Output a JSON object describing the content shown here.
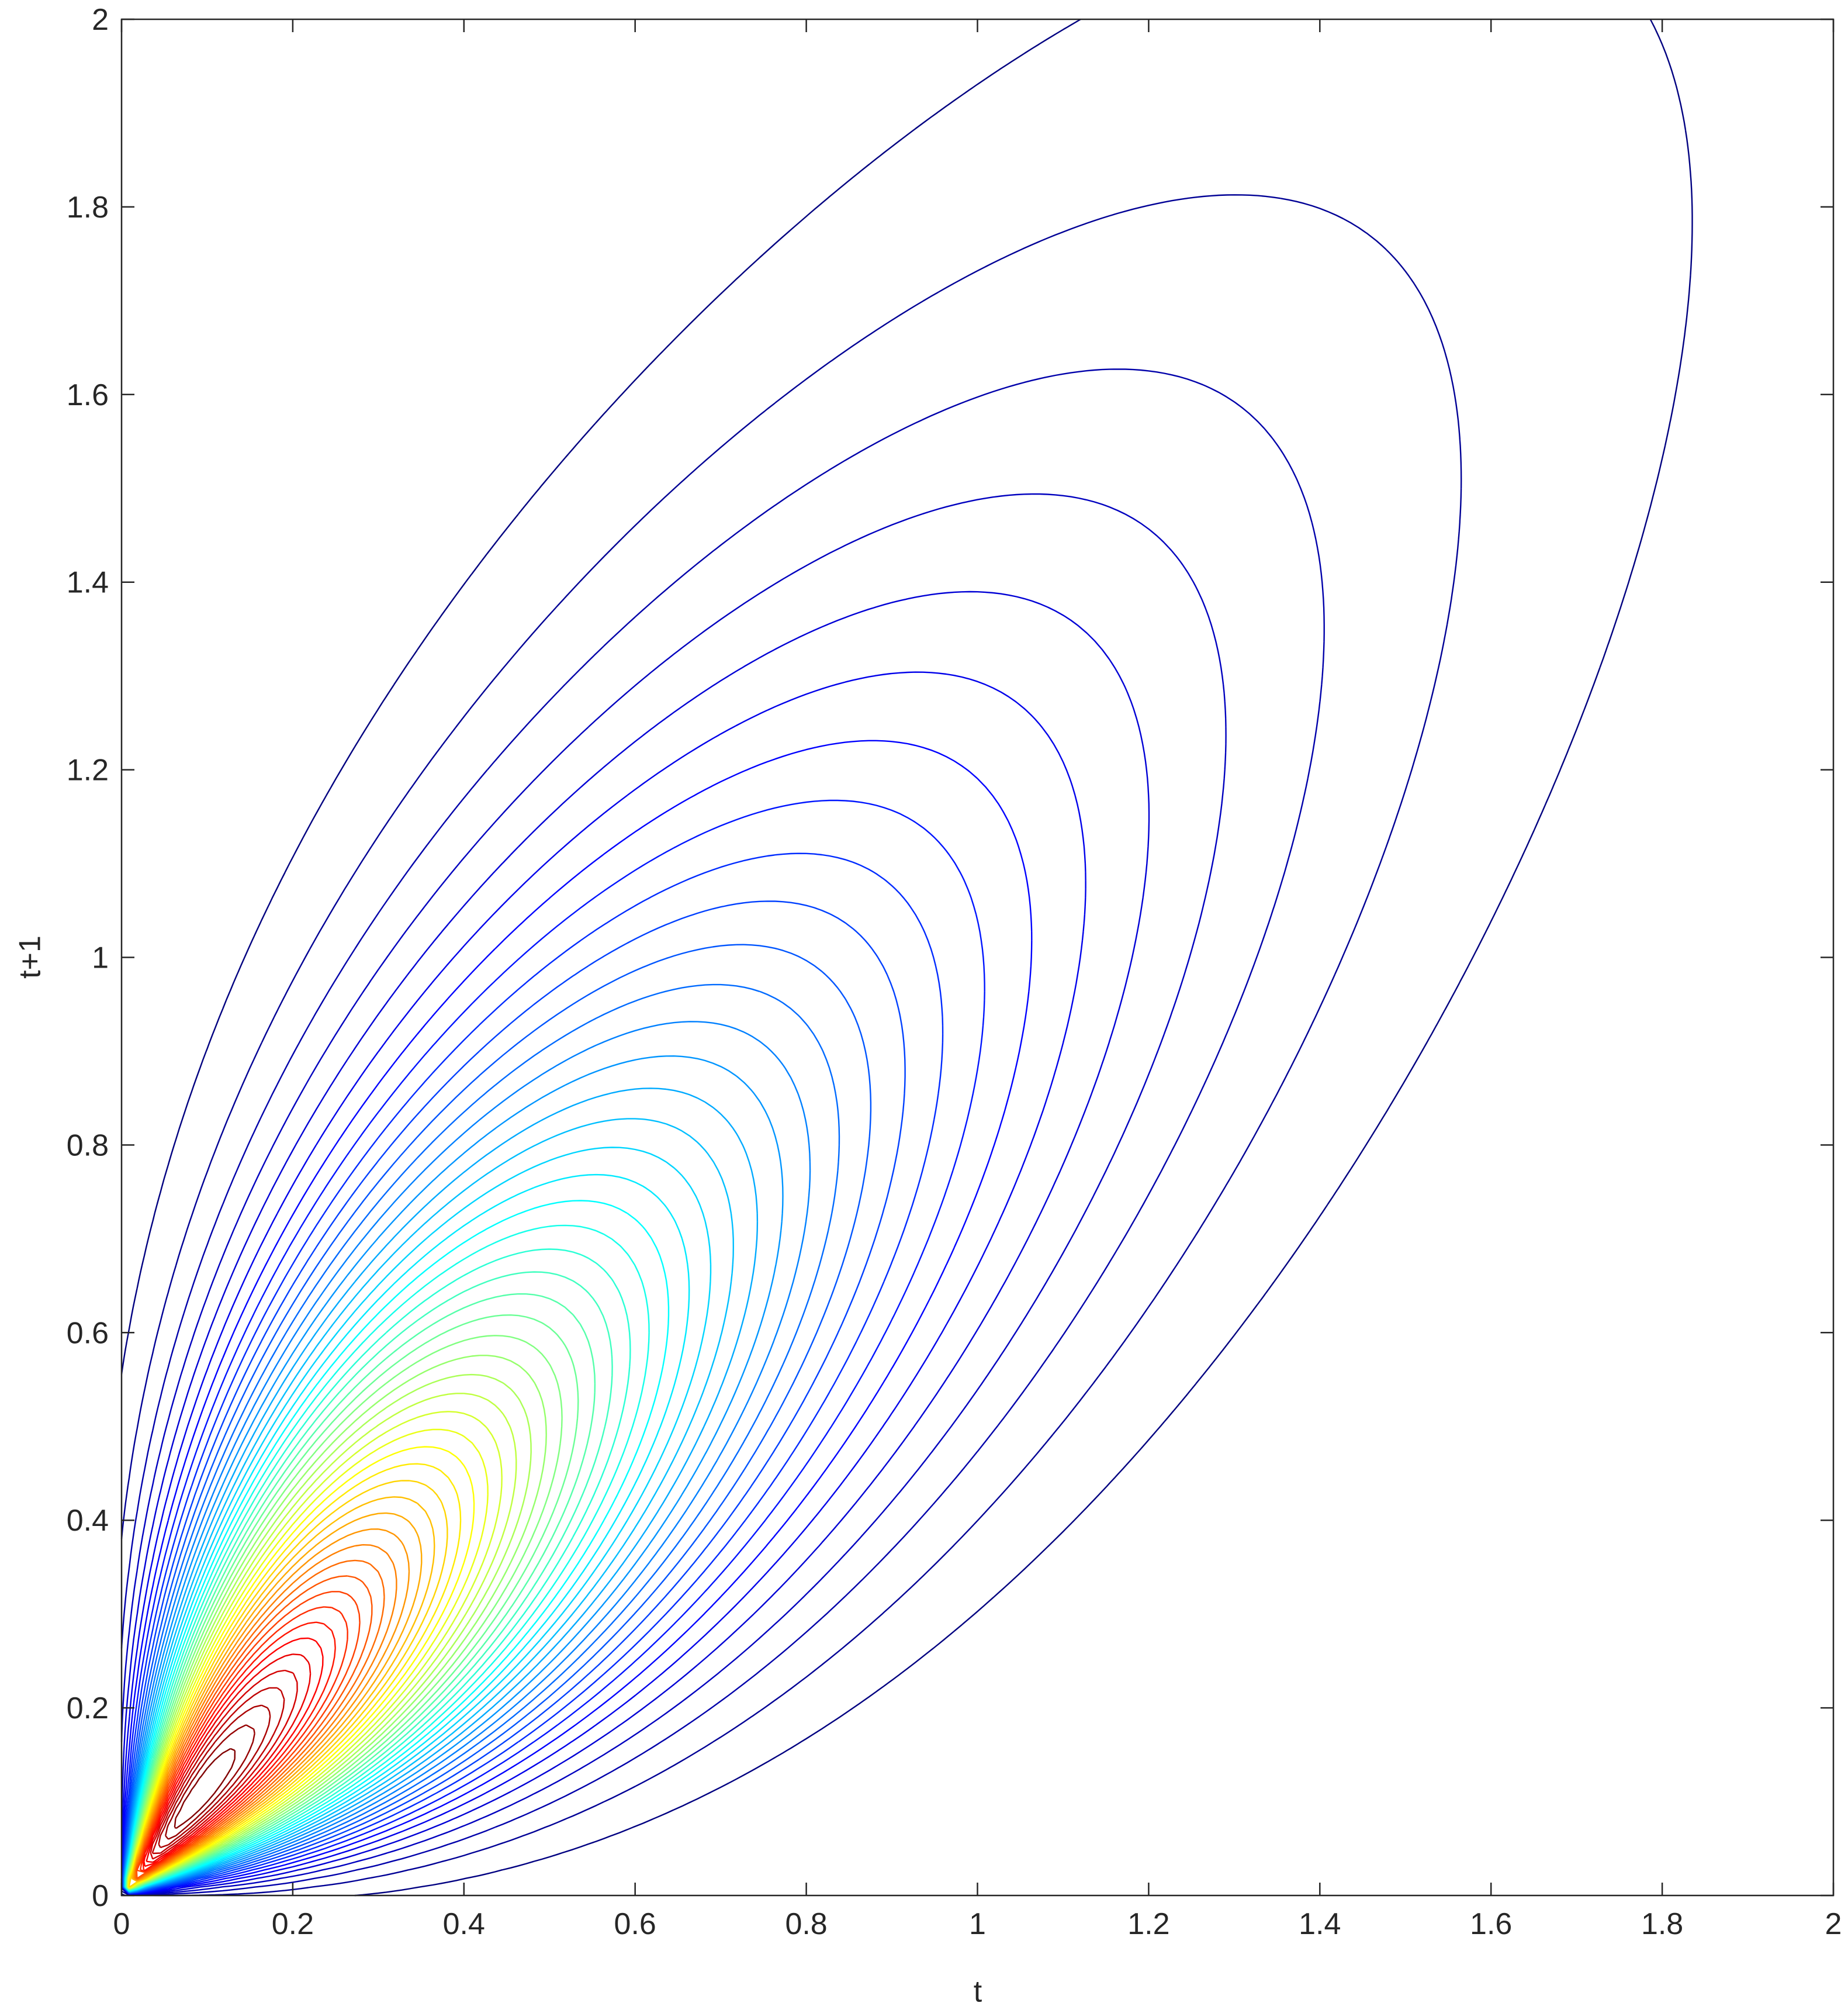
{
  "chart_data": {
    "type": "contour",
    "xlabel": "t",
    "ylabel": "t+1",
    "xlim": [
      0,
      2
    ],
    "ylim": [
      0,
      2
    ],
    "xticks": [
      0,
      0.2,
      0.4,
      0.6,
      0.8,
      1,
      1.2,
      1.4,
      1.6,
      1.8,
      2
    ],
    "yticks": [
      0,
      0.2,
      0.4,
      0.6,
      0.8,
      1,
      1.2,
      1.4,
      1.6,
      1.8,
      2
    ],
    "colormap": "jet",
    "levels": [
      0.02,
      0.04,
      0.06,
      0.08,
      0.1,
      0.12,
      0.14,
      0.16,
      0.18,
      0.2,
      0.22,
      0.24,
      0.26,
      0.28,
      0.3,
      0.32,
      0.34,
      0.36,
      0.38,
      0.4,
      0.42,
      0.44,
      0.46,
      0.48,
      0.5,
      0.52,
      0.54,
      0.56,
      0.58,
      0.6,
      0.62,
      0.64,
      0.66,
      0.68,
      0.7,
      0.72,
      0.74,
      0.76,
      0.78,
      0.8,
      0.82,
      0.84,
      0.86,
      0.88,
      0.9,
      0.92,
      0.94,
      0.96,
      0.98
    ]
  }
}
